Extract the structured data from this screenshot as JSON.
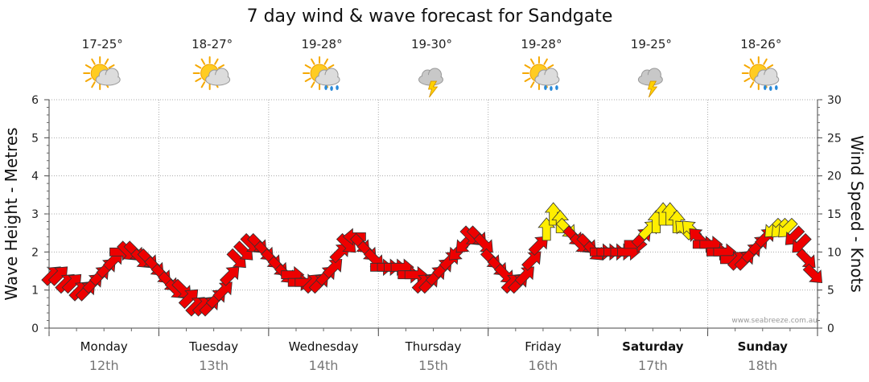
{
  "title": "7 day wind & wave forecast for Sandgate",
  "watermark": "www.seabreeze.com.au",
  "colors": {
    "strong": "#ee0000",
    "light": "#ffee00",
    "outline": "#333333",
    "grid": "#aaaaaa"
  },
  "days": [
    {
      "name": "Monday",
      "date": "12th",
      "temp": "17-25°",
      "icon": "sun-cloud-icon",
      "bold": false
    },
    {
      "name": "Tuesday",
      "date": "13th",
      "temp": "18-27°",
      "icon": "sun-cloud-icon",
      "bold": false
    },
    {
      "name": "Wednesday",
      "date": "14th",
      "temp": "19-28°",
      "icon": "sun-rain-icon",
      "bold": false
    },
    {
      "name": "Thursday",
      "date": "15th",
      "temp": "19-30°",
      "icon": "storm-icon",
      "bold": false
    },
    {
      "name": "Friday",
      "date": "16th",
      "temp": "19-28°",
      "icon": "sun-rain-icon",
      "bold": false
    },
    {
      "name": "Saturday",
      "date": "17th",
      "temp": "19-25°",
      "icon": "storm-icon",
      "bold": true
    },
    {
      "name": "Sunday",
      "date": "18th",
      "temp": "18-26°",
      "icon": "sun-rain-icon",
      "bold": true
    }
  ],
  "chart_data": {
    "type": "line",
    "title": "7 day wind & wave forecast for Sandgate",
    "ylabel_left": "Wave Height - Metres",
    "ylabel_right": "Wind Speed - Knots",
    "ylim_left": [
      0,
      6
    ],
    "ylim_right": [
      0,
      30
    ],
    "yticks_left": [
      0,
      1,
      2,
      3,
      4,
      5,
      6
    ],
    "yticks_right": [
      0,
      5,
      10,
      15,
      20,
      25,
      30
    ],
    "grid": true,
    "categories": [
      "Monday",
      "Tuesday",
      "Wednesday",
      "Thursday",
      "Friday",
      "Saturday",
      "Sunday"
    ],
    "series": [
      {
        "unit": "knots",
        "points_per_day": 16,
        "speed": [
          7,
          7,
          6,
          6,
          5,
          5,
          6,
          7,
          8,
          9,
          10,
          10,
          10,
          9,
          9,
          8,
          7,
          6,
          5,
          5,
          4,
          3,
          3,
          3,
          4,
          5,
          7,
          9,
          10,
          11,
          11,
          10,
          9,
          8,
          7,
          7,
          6,
          6,
          6,
          6,
          7,
          8,
          10,
          11,
          12,
          11,
          10,
          9,
          8,
          8,
          8,
          8,
          7,
          7,
          6,
          6,
          7,
          8,
          9,
          10,
          11,
          12,
          12,
          11,
          9,
          8,
          7,
          6,
          6,
          7,
          9,
          11,
          13,
          15,
          14,
          13,
          12,
          11,
          11,
          10,
          10,
          10,
          10,
          10,
          10,
          11,
          12,
          13,
          14,
          15,
          15,
          14,
          13,
          13,
          12,
          11,
          11,
          10,
          10,
          9,
          9,
          9,
          10,
          11,
          12,
          13,
          13,
          13,
          12,
          11,
          9,
          7
        ],
        "direction": [
          "SW",
          "SW",
          "SW",
          "SW",
          "SW",
          "SW",
          "SW",
          "SW",
          "SW",
          "SW",
          "W",
          "NW",
          "NW",
          "NW",
          "NW",
          "NW",
          "NW",
          "NW",
          "NW",
          "NW",
          "SW",
          "SW",
          "SW",
          "SW",
          "SW",
          "SW",
          "SW",
          "NW",
          "NW",
          "NW",
          "NW",
          "NW",
          "NW",
          "NW",
          "NW",
          "W",
          "W",
          "W",
          "SW",
          "SW",
          "SW",
          "SW",
          "SW",
          "NW",
          "E",
          "NW",
          "NW",
          "NW",
          "W",
          "W",
          "W",
          "W",
          "W",
          "W",
          "SW",
          "SW",
          "SW",
          "SW",
          "SW",
          "NE",
          "NE",
          "NW",
          "NW",
          "NW",
          "NW",
          "NW",
          "NW",
          "SW",
          "SW",
          "SW",
          "SW",
          "SW",
          "S",
          "S",
          "S",
          "NW",
          "NW",
          "NW",
          "NW",
          "NW",
          "W",
          "W",
          "W",
          "W",
          "W",
          "W",
          "SW",
          "SW",
          "S",
          "S",
          "S",
          "S",
          "SE",
          "SE",
          "SE",
          "W",
          "W",
          "W",
          "W",
          "W",
          "SW",
          "SW",
          "SW",
          "SW",
          "SW",
          "NE",
          "NE",
          "NE",
          "NE",
          "NE",
          "NW",
          "NW"
        ]
      }
    ]
  }
}
